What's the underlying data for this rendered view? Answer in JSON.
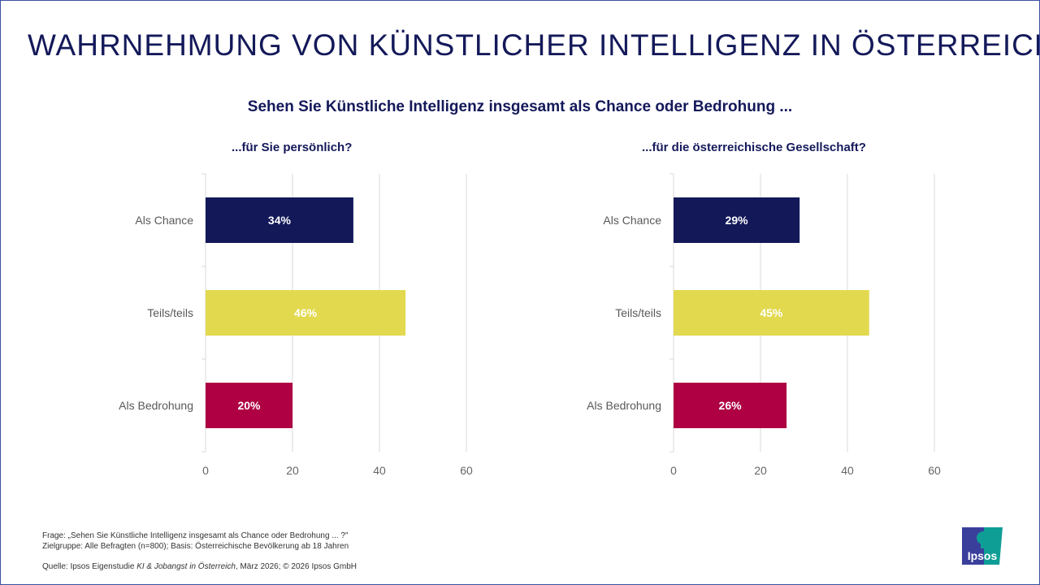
{
  "title": "WAHRNEHMUNG VON KÜNSTLICHER INTELLIGENZ IN ÖSTERREICH",
  "subtitle": "Sehen Sie Künstliche Intelligenz insgesamt als Chance oder Bedrohung ...",
  "colors": {
    "chance": "#121858",
    "teils": "#e2d94f",
    "bedrohung": "#ae0042",
    "text": "#14195a",
    "grid": "#d9d9d9"
  },
  "chart_data": [
    {
      "type": "bar",
      "orientation": "horizontal",
      "title": "...für Sie persönlich?",
      "categories": [
        "Als Chance",
        "Teils/teils",
        "Als Bedrohung"
      ],
      "values": [
        34,
        46,
        20
      ],
      "labels": [
        "34%",
        "46%",
        "20%"
      ],
      "xlim": [
        0,
        60
      ],
      "xticks": [
        0,
        20,
        40,
        60
      ],
      "grid": true
    },
    {
      "type": "bar",
      "orientation": "horizontal",
      "title": "...für die österreichische Gesellschaft?",
      "categories": [
        "Als Chance",
        "Teils/teils",
        "Als Bedrohung"
      ],
      "values": [
        29,
        45,
        26
      ],
      "labels": [
        "29%",
        "45%",
        "26%"
      ],
      "xlim": [
        0,
        60
      ],
      "xticks": [
        0,
        20,
        40,
        60
      ],
      "grid": true
    }
  ],
  "footer": {
    "frage": "Frage: „Sehen Sie Künstliche Intelligenz insgesamt als Chance oder Bedrohung ... ?\"",
    "zielgruppe": "Zielgruppe: Alle Befragten (n=800); Basis: Österreichische Bevölkerung ab 18 Jahren",
    "quelle_prefix": "Quelle: Ipsos Eigenstudie ",
    "quelle_study": "KI & Jobangst in Österreich",
    "quelle_suffix": ", März 2026; © 2026 Ipsos GmbH"
  },
  "logo": {
    "text": "Ipsos"
  }
}
